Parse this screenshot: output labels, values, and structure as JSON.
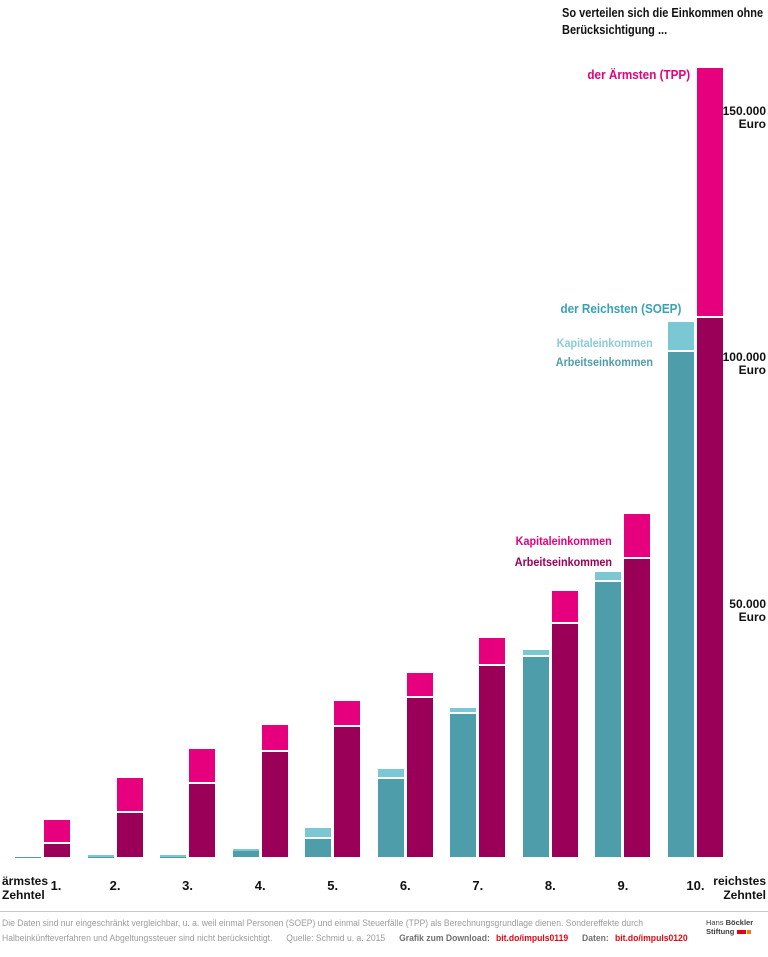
{
  "title": {
    "line1": "So verteilen sich die Einkommen ohne",
    "line2": "Berücksichtigung ..."
  },
  "annotations": {
    "tpp_header": "der Ärmsten (TPP)",
    "soep_header": "der Reichsten (SOEP)",
    "soep_capital_label": "Kapitaleinkommen",
    "soep_labor_label": "Arbeitseinkommen",
    "tpp_capital_label": "Kapitaleinkommen",
    "tpp_labor_label": "Arbeitseinkommen"
  },
  "colors": {
    "tpp_capital": "#e6007e",
    "tpp_labor": "#9a0058",
    "soep_capital": "#7cc7d4",
    "soep_labor": "#4e9daa",
    "soep_header_text": "#3aa2b4",
    "soep_capital_label_text": "#8accd8",
    "link_red": "#e30613",
    "logo_red": "#e2001a",
    "logo_orange": "#f07d00"
  },
  "chart_data": {
    "type": "bar",
    "title": "So verteilen sich die Einkommen ohne Berücksichtigung ... der Ärmsten (TPP) / der Reichsten (SOEP)",
    "unit": "Euro",
    "categories": [
      "1.",
      "2.",
      "3.",
      "4.",
      "5.",
      "6.",
      "7.",
      "8.",
      "9.",
      "10."
    ],
    "series": [
      {
        "name": "SOEP Kapitaleinkommen",
        "color": "#7cc7d4",
        "values": [
          0,
          300,
          400,
          400,
          1700,
          1700,
          900,
          1000,
          1800,
          5700
        ]
      },
      {
        "name": "SOEP Arbeitseinkommen",
        "color": "#4e9daa",
        "values": [
          100,
          100,
          100,
          1300,
          3700,
          15800,
          29000,
          40600,
          55700,
          102400
        ]
      },
      {
        "name": "TPP Kapitaleinkommen",
        "color": "#e6007e",
        "values": [
          4500,
          6700,
          6600,
          5100,
          4900,
          4700,
          5300,
          6300,
          8700,
          50300
        ]
      },
      {
        "name": "TPP Arbeitseinkommen",
        "color": "#9a0058",
        "values": [
          2700,
          8900,
          14900,
          21300,
          26300,
          32300,
          38800,
          47300,
          60400,
          109300
        ]
      }
    ],
    "y_ticks": [
      {
        "value": 150000,
        "label": "150.000",
        "unit": "Euro"
      },
      {
        "value": 100000,
        "label": "100.000",
        "unit": "Euro"
      },
      {
        "value": 50000,
        "label": "50.000",
        "unit": "Euro"
      }
    ],
    "ylim": [
      0,
      162000
    ],
    "grid": false,
    "legend_position": "annotations-near-bars"
  },
  "x_axis": {
    "left_line1": "ärmstes",
    "left_line2": "Zehntel",
    "right_line1": "reichstes",
    "right_line2": "Zehntel"
  },
  "footer": {
    "line1": "Die Daten sind nur eingeschränkt vergleichbar, u. a. weil einmal Personen (SOEP) und einmal Steuerfälle (TPP) als Berechnungsgrundlage dienen. Sondereffekte durch",
    "line2": "Halbeinkünfteverfahren und Abgeltungssteuer sind nicht berücksichtigt.",
    "source": "Quelle: Schmid u. a. 2015",
    "download_label": "Grafik zum Download:",
    "download_link": "bit.do/impuls0119",
    "data_label": "Daten:",
    "data_link": "bit.do/impuls0120"
  },
  "logo": {
    "hans": "Hans",
    "boeckler": "Böckler",
    "stiftung": "Stiftung"
  }
}
